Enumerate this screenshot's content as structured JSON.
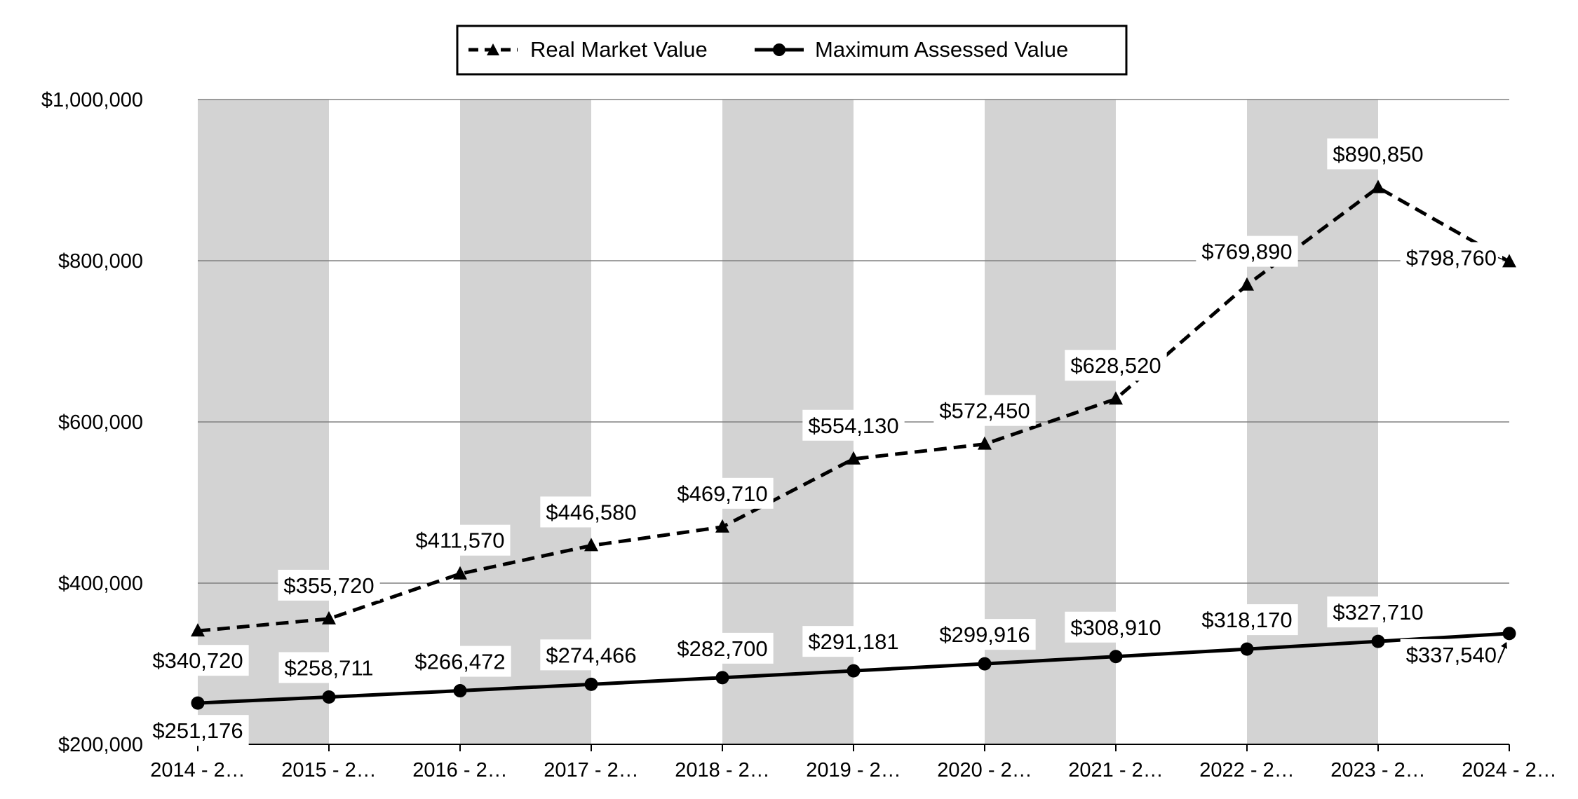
{
  "chart_data": {
    "type": "line",
    "title": "",
    "xlabel": "",
    "ylabel": "",
    "ylim": [
      200000,
      1000000
    ],
    "yticks": [
      200000,
      400000,
      600000,
      800000,
      1000000
    ],
    "ytick_labels": [
      "$200,000",
      "$400,000",
      "$600,000",
      "$800,000",
      "$1,000,000"
    ],
    "grid": true,
    "legend_position": "top-center",
    "categories": [
      "2014 - 2…",
      "2015 - 2…",
      "2016 - 2…",
      "2017 - 2…",
      "2018 - 2…",
      "2019 - 2…",
      "2020 - 2…",
      "2021 - 2…",
      "2022 - 2…",
      "2023 - 2…",
      "2024 - 2…"
    ],
    "series": [
      {
        "name": "Real Market Value",
        "style": "dashed",
        "marker": "triangle",
        "values": [
          340720,
          355720,
          411570,
          446580,
          469710,
          554130,
          572450,
          628520,
          769890,
          890850,
          798760
        ],
        "labels": [
          "$340,720",
          "$355,720",
          "$411,570",
          "$446,580",
          "$469,710",
          "$554,130",
          "$572,450",
          "$628,520",
          "$769,890",
          "$890,850",
          "$798,760"
        ]
      },
      {
        "name": "Maximum Assessed Value",
        "style": "solid",
        "marker": "circle",
        "values": [
          251176,
          258711,
          266472,
          274466,
          282700,
          291181,
          299916,
          308910,
          318170,
          327710,
          337540
        ],
        "labels": [
          "$251,176",
          "$258,711",
          "$266,472",
          "$274,466",
          "$282,700",
          "$291,181",
          "$299,916",
          "$308,910",
          "$318,170",
          "$327,710",
          "$337,540"
        ]
      }
    ],
    "colors": {
      "line": "#000000",
      "band": "#d3d3d3",
      "grid": "#808080",
      "label_bg": "#ffffff"
    }
  }
}
